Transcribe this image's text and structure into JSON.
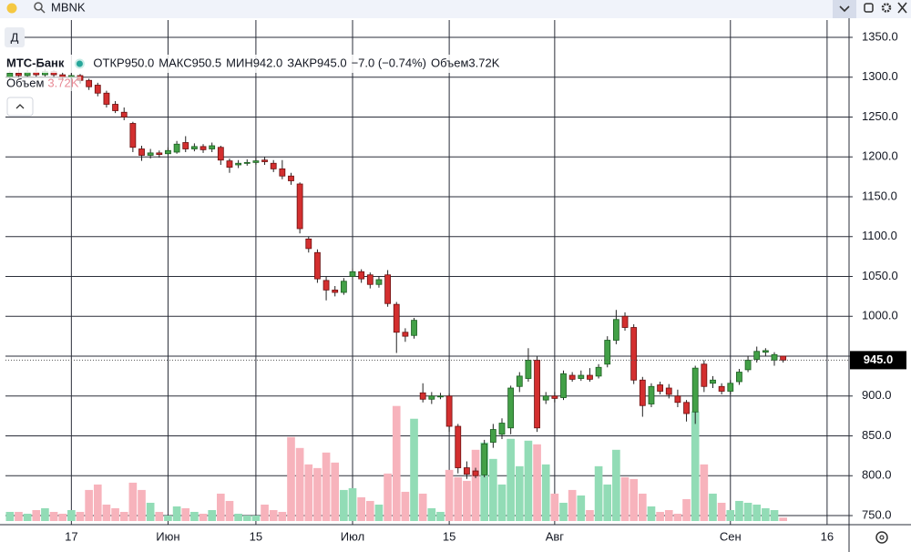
{
  "ui": {
    "search": "MBNK",
    "interval": "Д"
  },
  "chart_data": {
    "type": "candlestick",
    "title": "МТС-Банк",
    "ohlc_legend": [
      {
        "label": "ОТКР",
        "text": "950.0"
      },
      {
        "label": "МАКС",
        "text": "950.5"
      },
      {
        "label": "МИН",
        "text": "942.0"
      },
      {
        "label": "ЗАКР",
        "text": "945.0"
      }
    ],
    "change": "−7.0 (−0.74%)",
    "volume_legend": {
      "label": "Объем",
      "text": "3.72K"
    },
    "categories": [
      null,
      null,
      null,
      null,
      null,
      null,
      null,
      "17",
      null,
      null,
      null,
      null,
      null,
      null,
      null,
      null,
      null,
      null,
      "Июн",
      null,
      null,
      null,
      null,
      null,
      null,
      null,
      null,
      null,
      "15",
      null,
      null,
      null,
      null,
      null,
      null,
      null,
      null,
      null,
      null,
      "Июл",
      null,
      null,
      null,
      null,
      null,
      null,
      null,
      null,
      null,
      null,
      "15",
      null,
      null,
      null,
      null,
      null,
      null,
      null,
      null,
      null,
      null,
      null,
      "Авг",
      null,
      null,
      null,
      null,
      null,
      null,
      null,
      null,
      null,
      null,
      null,
      null,
      null,
      null,
      null,
      null,
      null,
      null,
      null,
      "Сен",
      null,
      null,
      null,
      null,
      null,
      null,
      null,
      null,
      null,
      null,
      "16",
      null,
      null
    ],
    "open": [
      1300,
      1305,
      1302,
      1306,
      1303,
      1307,
      1303,
      1300,
      1302,
      1296,
      1290,
      1280,
      1266,
      1256,
      1242,
      1210,
      1202,
      1205,
      1204,
      1206,
      1218,
      1210,
      1213,
      1210,
      1212,
      1195,
      1190,
      1192,
      1193,
      1196,
      1192,
      1185,
      1176,
      1166,
      1097,
      1080,
      1045,
      1033,
      1030,
      1050,
      1056,
      1052,
      1040,
      1052,
      1015,
      980,
      976,
      904,
      896,
      900,
      900,
      862,
      810,
      806,
      801,
      842,
      852,
      860,
      912,
      922,
      945,
      895,
      900,
      898,
      926,
      922,
      926,
      925,
      940,
      970,
      1000,
      986,
      920,
      890,
      914,
      910,
      900,
      892,
      880,
      940,
      916,
      912,
      906,
      918,
      933,
      946,
      955,
      945,
      950,
      null,
      null,
      null,
      null,
      null,
      null,
      null
    ],
    "high": [
      1308,
      1310,
      1309,
      1312,
      1310,
      1309,
      1306,
      1305,
      1304,
      1298,
      1293,
      1283,
      1270,
      1262,
      1244,
      1214,
      1210,
      1208,
      1212,
      1220,
      1226,
      1217,
      1216,
      1218,
      1214,
      1198,
      1196,
      1197,
      1199,
      1200,
      1196,
      1196,
      1180,
      1168,
      1100,
      1084,
      1050,
      1038,
      1048,
      1060,
      1059,
      1055,
      1050,
      1058,
      1018,
      985,
      998,
      916,
      905,
      904,
      903,
      865,
      818,
      810,
      845,
      865,
      872,
      913,
      930,
      960,
      950,
      905,
      905,
      932,
      930,
      932,
      935,
      940,
      975,
      1008,
      1005,
      990,
      924,
      916,
      918,
      915,
      908,
      895,
      938,
      945,
      925,
      916,
      920,
      934,
      950,
      962,
      960,
      955,
      950.5,
      null,
      null,
      null,
      null,
      null,
      null,
      null
    ],
    "low": [
      1297,
      1299,
      1300,
      1300,
      1301,
      1299,
      1296,
      1297,
      1292,
      1284,
      1276,
      1262,
      1255,
      1246,
      1206,
      1195,
      1198,
      1199,
      1202,
      1204,
      1206,
      1207,
      1205,
      1206,
      1190,
      1180,
      1186,
      1189,
      1190,
      1190,
      1181,
      1172,
      1165,
      1104,
      1080,
      1042,
      1020,
      1025,
      1027,
      1046,
      1042,
      1035,
      1036,
      1012,
      954,
      968,
      972,
      892,
      890,
      896,
      855,
      803,
      796,
      797,
      798,
      835,
      846,
      852,
      905,
      918,
      855,
      890,
      892,
      895,
      918,
      919,
      918,
      922,
      936,
      965,
      982,
      915,
      874,
      886,
      902,
      897,
      886,
      868,
      865,
      905,
      910,
      902,
      902,
      914,
      930,
      942,
      950,
      938,
      942,
      null,
      null,
      null,
      null,
      null,
      null,
      null
    ],
    "close": [
      1305,
      1302,
      1306,
      1303,
      1307,
      1303,
      1300,
      1302,
      1296,
      1288,
      1280,
      1266,
      1258,
      1250,
      1212,
      1202,
      1205,
      1203,
      1208,
      1216,
      1210,
      1213,
      1209,
      1214,
      1196,
      1187,
      1192,
      1193,
      1195,
      1194,
      1185,
      1176,
      1170,
      1110,
      1085,
      1047,
      1033,
      1030,
      1044,
      1056,
      1047,
      1040,
      1046,
      1016,
      980,
      975,
      995,
      896,
      900,
      900,
      862,
      810,
      802,
      800,
      840,
      858,
      866,
      910,
      925,
      945,
      860,
      900,
      897,
      928,
      921,
      926,
      921,
      936,
      970,
      996,
      986,
      920,
      888,
      912,
      906,
      902,
      892,
      878,
      935,
      912,
      920,
      906,
      916,
      930,
      945,
      956,
      957,
      952,
      945,
      null,
      null,
      null,
      null,
      null,
      null,
      null
    ],
    "volume": [
      10000,
      10000,
      8000,
      12000,
      14000,
      10000,
      8000,
      12000,
      10000,
      34000,
      40000,
      18000,
      14000,
      10000,
      42000,
      34000,
      20000,
      10000,
      6000,
      16000,
      14000,
      10000,
      8000,
      12000,
      30000,
      22000,
      8000,
      6000,
      6000,
      18000,
      12000,
      10000,
      92000,
      80000,
      62000,
      58000,
      75000,
      64000,
      34000,
      36000,
      26000,
      22000,
      18000,
      52000,
      126000,
      32000,
      112000,
      30000,
      14000,
      10000,
      56000,
      48000,
      44000,
      78000,
      86000,
      68000,
      40000,
      90000,
      60000,
      88000,
      84000,
      62000,
      30000,
      20000,
      34000,
      28000,
      12000,
      60000,
      40000,
      78000,
      48000,
      46000,
      30000,
      16000,
      10000,
      12000,
      8000,
      24000,
      120000,
      62000,
      30000,
      20000,
      12000,
      22000,
      20000,
      18000,
      14000,
      12000,
      3720,
      null,
      null,
      null,
      null,
      null,
      null,
      null
    ],
    "up_color": "#43a047",
    "down_color": "#d32f2f",
    "up_volume_color": "#92dcb6",
    "down_volume_color": "#f7b3bc",
    "ylim": [
      738.6,
      1371.7
    ],
    "yticks": [
      {
        "value": 750,
        "label": "750.0"
      },
      {
        "value": 800,
        "label": "800.0"
      },
      {
        "value": 850,
        "label": "850.0"
      },
      {
        "value": 900,
        "label": "900.0"
      },
      {
        "value": 950,
        "label": "950.0"
      },
      {
        "value": 1000,
        "label": "1000.0"
      },
      {
        "value": 1050,
        "label": "1050.0"
      },
      {
        "value": 1100,
        "label": "1100.0"
      },
      {
        "value": 1150,
        "label": "1150.0"
      },
      {
        "value": 1200,
        "label": "1200.0"
      },
      {
        "value": 1250,
        "label": "1250.0"
      },
      {
        "value": 1300,
        "label": "1300.0"
      },
      {
        "value": 1350,
        "label": "1350.0"
      }
    ],
    "last_price": {
      "value": 945,
      "label": "945.0"
    },
    "grid": true
  }
}
